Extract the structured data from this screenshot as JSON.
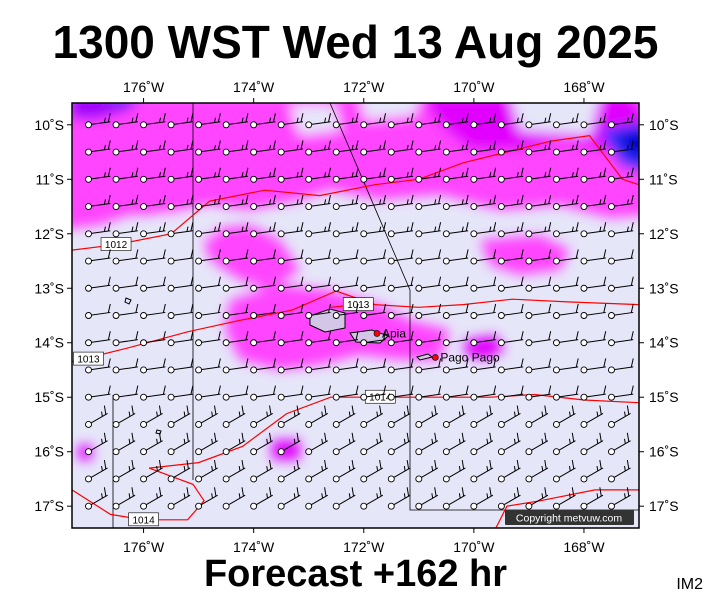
{
  "title": "1300 WST Wed 13 Aug 2025",
  "footer": "Forecast +162 hr",
  "corner_tag": "IM2",
  "copyright": "Copyright metvuw.com",
  "colors": {
    "sea": "#e6e6f9",
    "rain_light": "#ff44ff",
    "rain_medium": "#e100ff",
    "rain_heavy": "#a000ff",
    "rain_very_heavy": "#3030ff",
    "rain_extreme": "#0000d0",
    "isobar": "#ff0000",
    "land": "#d4c6e6"
  },
  "map_extent": {
    "lon_west": -177.3,
    "lon_east": -167.0,
    "lat_north": -9.6,
    "lat_south": -17.4
  },
  "lon_ticks": [
    {
      "lon": -176,
      "label": "176˚W"
    },
    {
      "lon": -174,
      "label": "174˚W"
    },
    {
      "lon": -172,
      "label": "172˚W"
    },
    {
      "lon": -170,
      "label": "170˚W"
    },
    {
      "lon": -168,
      "label": "168˚W"
    }
  ],
  "lat_ticks": [
    {
      "lat": -10,
      "label": "10˚S"
    },
    {
      "lat": -11,
      "label": "11˚S"
    },
    {
      "lat": -12,
      "label": "12˚S"
    },
    {
      "lat": -13,
      "label": "13˚S"
    },
    {
      "lat": -14,
      "label": "14˚S"
    },
    {
      "lat": -15,
      "label": "15˚S"
    },
    {
      "lat": -16,
      "label": "16˚S"
    },
    {
      "lat": -17,
      "label": "17˚S"
    }
  ],
  "places": [
    {
      "name": "Apia",
      "lon": -171.76,
      "lat": -13.83
    },
    {
      "name": "Pago Pago",
      "lon": -170.7,
      "lat": -14.27
    }
  ],
  "isobars": [
    {
      "label": "1012",
      "label_at": [
        -176.5,
        -12.2
      ],
      "points": [
        [
          -177.3,
          -12.3
        ],
        [
          -176.5,
          -12.2
        ],
        [
          -175.5,
          -12.0
        ],
        [
          -174.8,
          -11.4
        ],
        [
          -173.8,
          -11.2
        ],
        [
          -172.8,
          -11.3
        ],
        [
          -171.8,
          -11.1
        ],
        [
          -171.0,
          -11.0
        ],
        [
          -170.2,
          -10.7
        ],
        [
          -169.4,
          -10.5
        ],
        [
          -168.6,
          -10.3
        ],
        [
          -167.9,
          -10.2
        ],
        [
          -167.3,
          -11.0
        ],
        [
          -167.0,
          -11.1
        ]
      ]
    },
    {
      "label": "1013",
      "label_at": [
        -177.0,
        -14.3
      ],
      "points": [
        [
          -177.3,
          -14.35
        ],
        [
          -176.3,
          -14.1
        ],
        [
          -175.2,
          -13.8
        ],
        [
          -174.3,
          -13.6
        ],
        [
          -173.3,
          -13.4
        ],
        [
          -172.5,
          -13.05
        ],
        [
          -171.8,
          -13.3
        ],
        [
          -171.0,
          -13.35
        ],
        [
          -170.2,
          -13.3
        ],
        [
          -169.3,
          -13.2
        ],
        [
          -168.3,
          -13.25
        ],
        [
          -167.0,
          -13.3
        ]
      ]
    },
    {
      "label": "1013",
      "label_at": [
        -172.1,
        -13.3
      ],
      "points": [
        [
          -172.6,
          -13.35
        ],
        [
          -172.1,
          -13.3
        ],
        [
          -171.9,
          -13.35
        ]
      ]
    },
    {
      "label": "1014",
      "label_at": [
        -171.7,
        -15.0
      ],
      "points": [
        [
          -175.9,
          -16.3
        ],
        [
          -175.0,
          -16.2
        ],
        [
          -174.2,
          -15.9
        ],
        [
          -173.4,
          -15.3
        ],
        [
          -172.6,
          -15.0
        ],
        [
          -171.6,
          -15.0
        ],
        [
          -170.6,
          -15.0
        ],
        [
          -169.7,
          -15.0
        ],
        [
          -168.9,
          -14.95
        ],
        [
          -168.0,
          -15.05
        ],
        [
          -167.0,
          -15.1
        ]
      ]
    },
    {
      "label": "1014",
      "label_at": [
        -176.0,
        -17.25
      ],
      "points": [
        [
          -177.3,
          -16.7
        ],
        [
          -176.6,
          -17.15
        ],
        [
          -176.0,
          -17.25
        ],
        [
          -175.2,
          -17.25
        ],
        [
          -174.9,
          -16.9
        ],
        [
          -175.1,
          -16.6
        ],
        [
          -175.9,
          -16.3
        ]
      ]
    },
    {
      "label": "",
      "label_at": null,
      "points": [
        [
          -169.6,
          -17.4
        ],
        [
          -169.4,
          -17.0
        ],
        [
          -168.8,
          -16.9
        ],
        [
          -167.8,
          -16.7
        ],
        [
          -167.0,
          -16.7
        ]
      ]
    }
  ],
  "wind_field": {
    "lon_start": -177.0,
    "lon_end": -167.2,
    "lon_step": 0.5,
    "lat_start": -10.0,
    "lat_end": -17.0,
    "lat_step": 0.5,
    "direction_note": "easterly trade winds, 10-20 kt"
  }
}
